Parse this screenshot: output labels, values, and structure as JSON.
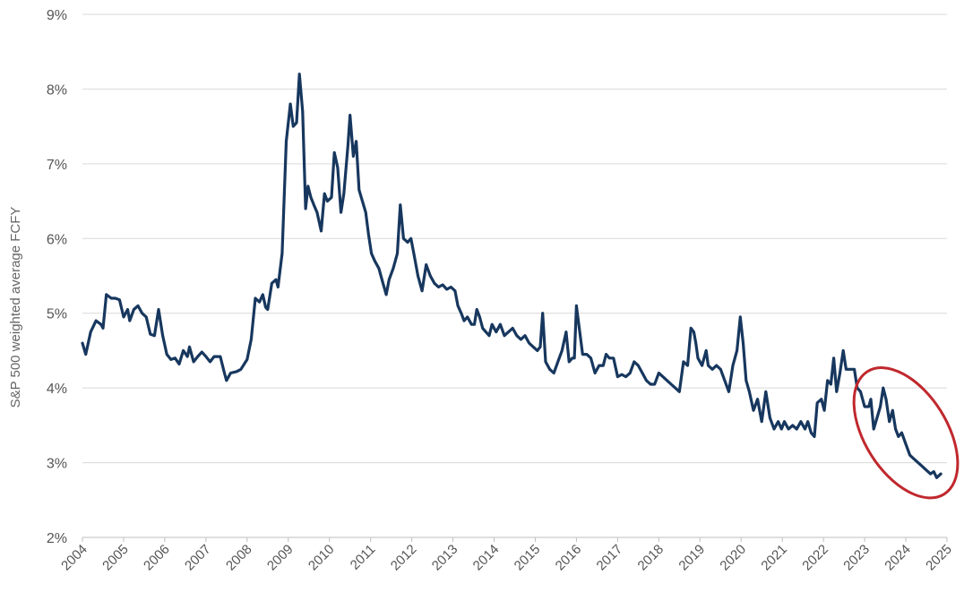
{
  "chart_data": {
    "type": "line",
    "ylabel": "S&P 500 weighted average FCFY",
    "xlabel": "",
    "title": "",
    "y_tick_labels": [
      "2%",
      "3%",
      "4%",
      "5%",
      "6%",
      "7%",
      "8%",
      "9%"
    ],
    "ylim": [
      2,
      9
    ],
    "x_tick_labels": [
      "2004",
      "2005",
      "2006",
      "2007",
      "2008",
      "2009",
      "2010",
      "2011",
      "2012",
      "2013",
      "2014",
      "2015",
      "2016",
      "2017",
      "2018",
      "2019",
      "2020",
      "2021",
      "2022",
      "2023",
      "2024",
      "2025"
    ],
    "xlim": [
      2004,
      2025
    ],
    "grid": "horizontal",
    "series": [
      {
        "color": "#17375e",
        "points": [
          [
            2004.0,
            4.6
          ],
          [
            2004.08,
            4.45
          ],
          [
            2004.2,
            4.75
          ],
          [
            2004.33,
            4.9
          ],
          [
            2004.45,
            4.85
          ],
          [
            2004.5,
            4.8
          ],
          [
            2004.58,
            5.25
          ],
          [
            2004.7,
            5.2
          ],
          [
            2004.8,
            5.2
          ],
          [
            2004.9,
            5.18
          ],
          [
            2005.0,
            4.95
          ],
          [
            2005.1,
            5.05
          ],
          [
            2005.15,
            4.9
          ],
          [
            2005.25,
            5.05
          ],
          [
            2005.35,
            5.1
          ],
          [
            2005.45,
            5.0
          ],
          [
            2005.55,
            4.95
          ],
          [
            2005.65,
            4.72
          ],
          [
            2005.75,
            4.7
          ],
          [
            2005.85,
            5.05
          ],
          [
            2005.95,
            4.7
          ],
          [
            2006.05,
            4.45
          ],
          [
            2006.15,
            4.38
          ],
          [
            2006.25,
            4.4
          ],
          [
            2006.35,
            4.32
          ],
          [
            2006.45,
            4.5
          ],
          [
            2006.55,
            4.42
          ],
          [
            2006.6,
            4.55
          ],
          [
            2006.7,
            4.35
          ],
          [
            2006.8,
            4.42
          ],
          [
            2006.9,
            4.48
          ],
          [
            2007.0,
            4.42
          ],
          [
            2007.1,
            4.35
          ],
          [
            2007.2,
            4.42
          ],
          [
            2007.35,
            4.42
          ],
          [
            2007.45,
            4.2
          ],
          [
            2007.5,
            4.1
          ],
          [
            2007.6,
            4.2
          ],
          [
            2007.75,
            4.22
          ],
          [
            2007.85,
            4.25
          ],
          [
            2008.0,
            4.38
          ],
          [
            2008.1,
            4.65
          ],
          [
            2008.2,
            5.2
          ],
          [
            2008.3,
            5.15
          ],
          [
            2008.38,
            5.25
          ],
          [
            2008.45,
            5.08
          ],
          [
            2008.5,
            5.05
          ],
          [
            2008.6,
            5.4
          ],
          [
            2008.7,
            5.45
          ],
          [
            2008.75,
            5.35
          ],
          [
            2008.85,
            5.8
          ],
          [
            2008.95,
            7.3
          ],
          [
            2009.05,
            7.8
          ],
          [
            2009.12,
            7.5
          ],
          [
            2009.2,
            7.55
          ],
          [
            2009.27,
            8.2
          ],
          [
            2009.35,
            7.7
          ],
          [
            2009.42,
            6.4
          ],
          [
            2009.48,
            6.7
          ],
          [
            2009.55,
            6.55
          ],
          [
            2009.62,
            6.45
          ],
          [
            2009.7,
            6.35
          ],
          [
            2009.8,
            6.1
          ],
          [
            2009.88,
            6.6
          ],
          [
            2009.95,
            6.5
          ],
          [
            2010.05,
            6.55
          ],
          [
            2010.12,
            7.15
          ],
          [
            2010.2,
            6.95
          ],
          [
            2010.28,
            6.35
          ],
          [
            2010.35,
            6.6
          ],
          [
            2010.45,
            7.25
          ],
          [
            2010.5,
            7.65
          ],
          [
            2010.58,
            7.1
          ],
          [
            2010.65,
            7.3
          ],
          [
            2010.72,
            6.65
          ],
          [
            2010.8,
            6.5
          ],
          [
            2010.88,
            6.35
          ],
          [
            2010.95,
            6.05
          ],
          [
            2011.02,
            5.8
          ],
          [
            2011.1,
            5.7
          ],
          [
            2011.2,
            5.6
          ],
          [
            2011.3,
            5.4
          ],
          [
            2011.38,
            5.25
          ],
          [
            2011.45,
            5.45
          ],
          [
            2011.55,
            5.6
          ],
          [
            2011.65,
            5.8
          ],
          [
            2011.72,
            6.45
          ],
          [
            2011.8,
            6.0
          ],
          [
            2011.9,
            5.95
          ],
          [
            2011.98,
            6.0
          ],
          [
            2012.05,
            5.8
          ],
          [
            2012.15,
            5.5
          ],
          [
            2012.25,
            5.3
          ],
          [
            2012.35,
            5.65
          ],
          [
            2012.45,
            5.5
          ],
          [
            2012.55,
            5.4
          ],
          [
            2012.65,
            5.35
          ],
          [
            2012.75,
            5.38
          ],
          [
            2012.85,
            5.32
          ],
          [
            2012.95,
            5.35
          ],
          [
            2013.05,
            5.3
          ],
          [
            2013.12,
            5.1
          ],
          [
            2013.2,
            5.0
          ],
          [
            2013.27,
            4.9
          ],
          [
            2013.35,
            4.95
          ],
          [
            2013.45,
            4.85
          ],
          [
            2013.52,
            4.85
          ],
          [
            2013.58,
            5.05
          ],
          [
            2013.65,
            4.95
          ],
          [
            2013.72,
            4.8
          ],
          [
            2013.8,
            4.75
          ],
          [
            2013.88,
            4.7
          ],
          [
            2013.95,
            4.85
          ],
          [
            2014.05,
            4.75
          ],
          [
            2014.15,
            4.85
          ],
          [
            2014.25,
            4.7
          ],
          [
            2014.35,
            4.75
          ],
          [
            2014.45,
            4.8
          ],
          [
            2014.55,
            4.7
          ],
          [
            2014.65,
            4.65
          ],
          [
            2014.75,
            4.7
          ],
          [
            2014.85,
            4.6
          ],
          [
            2014.95,
            4.55
          ],
          [
            2015.05,
            4.5
          ],
          [
            2015.12,
            4.55
          ],
          [
            2015.18,
            5.0
          ],
          [
            2015.25,
            4.35
          ],
          [
            2015.35,
            4.25
          ],
          [
            2015.45,
            4.2
          ],
          [
            2015.55,
            4.35
          ],
          [
            2015.65,
            4.5
          ],
          [
            2015.75,
            4.75
          ],
          [
            2015.82,
            4.35
          ],
          [
            2015.9,
            4.4
          ],
          [
            2015.95,
            4.4
          ],
          [
            2016.0,
            5.1
          ],
          [
            2016.08,
            4.75
          ],
          [
            2016.15,
            4.45
          ],
          [
            2016.25,
            4.45
          ],
          [
            2016.35,
            4.4
          ],
          [
            2016.45,
            4.2
          ],
          [
            2016.55,
            4.3
          ],
          [
            2016.65,
            4.3
          ],
          [
            2016.72,
            4.45
          ],
          [
            2016.8,
            4.4
          ],
          [
            2016.9,
            4.4
          ],
          [
            2017.0,
            4.15
          ],
          [
            2017.1,
            4.18
          ],
          [
            2017.2,
            4.15
          ],
          [
            2017.3,
            4.2
          ],
          [
            2017.4,
            4.35
          ],
          [
            2017.5,
            4.3
          ],
          [
            2017.6,
            4.2
          ],
          [
            2017.7,
            4.1
          ],
          [
            2017.8,
            4.05
          ],
          [
            2017.9,
            4.05
          ],
          [
            2018.0,
            4.2
          ],
          [
            2018.1,
            4.15
          ],
          [
            2018.2,
            4.1
          ],
          [
            2018.3,
            4.05
          ],
          [
            2018.4,
            4.0
          ],
          [
            2018.5,
            3.95
          ],
          [
            2018.6,
            4.35
          ],
          [
            2018.7,
            4.3
          ],
          [
            2018.78,
            4.8
          ],
          [
            2018.85,
            4.75
          ],
          [
            2018.9,
            4.6
          ],
          [
            2018.95,
            4.4
          ],
          [
            2019.05,
            4.3
          ],
          [
            2019.15,
            4.5
          ],
          [
            2019.2,
            4.3
          ],
          [
            2019.3,
            4.25
          ],
          [
            2019.4,
            4.3
          ],
          [
            2019.5,
            4.25
          ],
          [
            2019.6,
            4.1
          ],
          [
            2019.7,
            3.95
          ],
          [
            2019.8,
            4.3
          ],
          [
            2019.9,
            4.5
          ],
          [
            2019.98,
            4.95
          ],
          [
            2020.05,
            4.6
          ],
          [
            2020.12,
            4.1
          ],
          [
            2020.2,
            3.95
          ],
          [
            2020.3,
            3.7
          ],
          [
            2020.4,
            3.85
          ],
          [
            2020.5,
            3.55
          ],
          [
            2020.6,
            3.95
          ],
          [
            2020.7,
            3.6
          ],
          [
            2020.8,
            3.45
          ],
          [
            2020.9,
            3.55
          ],
          [
            2020.98,
            3.45
          ],
          [
            2021.05,
            3.55
          ],
          [
            2021.15,
            3.45
          ],
          [
            2021.25,
            3.5
          ],
          [
            2021.35,
            3.45
          ],
          [
            2021.45,
            3.55
          ],
          [
            2021.55,
            3.45
          ],
          [
            2021.62,
            3.55
          ],
          [
            2021.7,
            3.4
          ],
          [
            2021.78,
            3.35
          ],
          [
            2021.85,
            3.8
          ],
          [
            2021.95,
            3.85
          ],
          [
            2022.02,
            3.7
          ],
          [
            2022.1,
            4.1
          ],
          [
            2022.18,
            4.05
          ],
          [
            2022.25,
            4.4
          ],
          [
            2022.32,
            3.95
          ],
          [
            2022.4,
            4.2
          ],
          [
            2022.48,
            4.5
          ],
          [
            2022.55,
            4.25
          ],
          [
            2022.65,
            4.25
          ],
          [
            2022.75,
            4.25
          ],
          [
            2022.82,
            4.0
          ],
          [
            2022.9,
            3.95
          ],
          [
            2023.0,
            3.75
          ],
          [
            2023.1,
            3.75
          ],
          [
            2023.15,
            3.85
          ],
          [
            2023.22,
            3.45
          ],
          [
            2023.3,
            3.6
          ],
          [
            2023.38,
            3.75
          ],
          [
            2023.45,
            4.0
          ],
          [
            2023.52,
            3.85
          ],
          [
            2023.6,
            3.55
          ],
          [
            2023.68,
            3.7
          ],
          [
            2023.75,
            3.45
          ],
          [
            2023.82,
            3.35
          ],
          [
            2023.9,
            3.4
          ],
          [
            2024.0,
            3.25
          ],
          [
            2024.1,
            3.1
          ],
          [
            2024.2,
            3.05
          ],
          [
            2024.3,
            3.0
          ],
          [
            2024.4,
            2.95
          ],
          [
            2024.5,
            2.9
          ],
          [
            2024.6,
            2.85
          ],
          [
            2024.68,
            2.88
          ],
          [
            2024.75,
            2.8
          ],
          [
            2024.85,
            2.85
          ]
        ]
      }
    ],
    "annotation": {
      "shape": "ellipse",
      "color": "#c0282d",
      "x_range": [
        2023.0,
        2025.0
      ],
      "y_range": [
        2.6,
        4.2
      ]
    }
  }
}
